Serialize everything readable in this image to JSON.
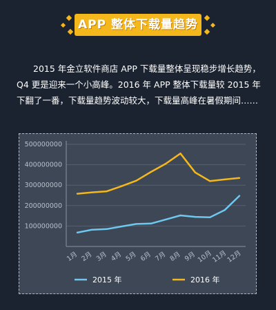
{
  "banner": {
    "title": "APP 整体下载量趋势"
  },
  "intro": {
    "text": "2015 年金立软件商店 APP 下载量整体呈现稳步增长趋势，Q4 更是迎来一个小高峰。2016 年 APP 整体下载量较 2015 年下翻了一番，下载量趋势波动较大，下载量高峰在暑假期间……"
  },
  "chart_data": {
    "type": "line",
    "categories": [
      "1月",
      "2月",
      "3月",
      "4月",
      "5月",
      "6月",
      "7月",
      "8月",
      "9月",
      "10月",
      "11月",
      "12月"
    ],
    "ylim": [
      0,
      500000000
    ],
    "yticks": [
      100000000,
      200000000,
      300000000,
      400000000,
      500000000
    ],
    "ytick_labels": [
      "100000000",
      "200000000",
      "300000000",
      "400000000",
      "500000000"
    ],
    "grid": true,
    "legend_position": "bottom",
    "series": [
      {
        "name": "2015 年",
        "color": "#6ec8f0",
        "values": [
          68000000,
          82000000,
          85000000,
          98000000,
          110000000,
          112000000,
          132000000,
          152000000,
          145000000,
          143000000,
          178000000,
          248000000
        ]
      },
      {
        "name": "2016 年",
        "color": "#f5b81c",
        "values": [
          258000000,
          265000000,
          270000000,
          295000000,
          322000000,
          365000000,
          405000000,
          455000000,
          362000000,
          320000000,
          328000000,
          335000000
        ]
      }
    ]
  }
}
